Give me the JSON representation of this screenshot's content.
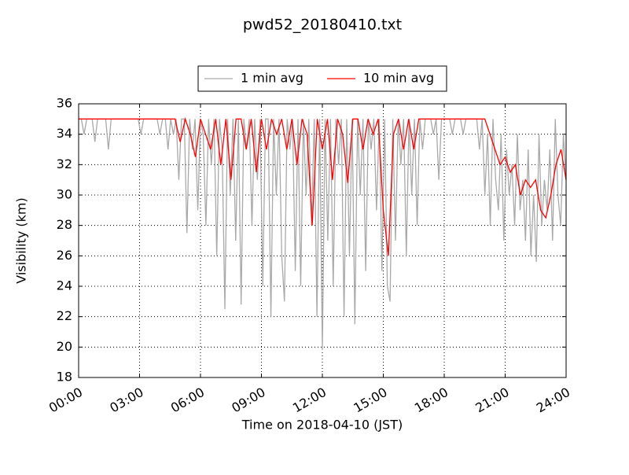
{
  "chart_data": {
    "type": "line",
    "title": "pwd52_20180410.txt",
    "x_label": "Time on 2018-04-10 (JST)",
    "y_label": "Visibility (km)",
    "xlim": [
      0,
      1440
    ],
    "ylim": [
      18,
      36
    ],
    "xticks": [
      {
        "value": 0,
        "label": "00:00"
      },
      {
        "value": 180,
        "label": "03:00"
      },
      {
        "value": 360,
        "label": "06:00"
      },
      {
        "value": 540,
        "label": "09:00"
      },
      {
        "value": 720,
        "label": "12:00"
      },
      {
        "value": 900,
        "label": "15:00"
      },
      {
        "value": 1080,
        "label": "18:00"
      },
      {
        "value": 1260,
        "label": "21:00"
      },
      {
        "value": 1440,
        "label": "24:00"
      }
    ],
    "yticks": [
      18,
      20,
      22,
      24,
      26,
      28,
      30,
      32,
      34,
      36
    ],
    "grid": true,
    "legend": "upper center",
    "series": [
      {
        "name": "1 min avg",
        "color": "#a9a9a9",
        "x": [
          0,
          8,
          16,
          24,
          32,
          40,
          48,
          56,
          64,
          72,
          80,
          88,
          96,
          104,
          112,
          120,
          128,
          136,
          144,
          152,
          160,
          168,
          176,
          184,
          192,
          200,
          208,
          216,
          224,
          232,
          240,
          248,
          256,
          264,
          272,
          280,
          288,
          296,
          304,
          312,
          320,
          328,
          336,
          344,
          352,
          360,
          368,
          376,
          384,
          392,
          400,
          408,
          416,
          424,
          432,
          440,
          448,
          456,
          464,
          472,
          480,
          488,
          496,
          504,
          512,
          520,
          528,
          536,
          544,
          552,
          560,
          568,
          576,
          584,
          592,
          600,
          608,
          616,
          624,
          632,
          640,
          648,
          656,
          664,
          672,
          680,
          688,
          696,
          704,
          712,
          720,
          728,
          736,
          744,
          752,
          760,
          768,
          776,
          784,
          792,
          800,
          808,
          816,
          824,
          832,
          840,
          848,
          856,
          864,
          872,
          880,
          888,
          896,
          904,
          912,
          920,
          928,
          936,
          944,
          952,
          960,
          968,
          976,
          984,
          992,
          1000,
          1008,
          1016,
          1024,
          1032,
          1040,
          1048,
          1056,
          1064,
          1072,
          1080,
          1088,
          1096,
          1104,
          1112,
          1120,
          1128,
          1136,
          1144,
          1152,
          1160,
          1168,
          1176,
          1184,
          1192,
          1200,
          1208,
          1216,
          1224,
          1232,
          1240,
          1248,
          1256,
          1264,
          1272,
          1280,
          1288,
          1296,
          1304,
          1312,
          1320,
          1328,
          1336,
          1344,
          1352,
          1360,
          1368,
          1376,
          1384,
          1392,
          1400,
          1408,
          1416,
          1424,
          1432,
          1440
        ],
        "values": [
          35,
          35,
          34,
          35,
          35,
          35,
          33.5,
          35,
          35,
          35,
          35,
          33,
          35,
          35,
          35,
          35,
          35,
          35,
          35,
          35,
          35,
          35,
          35,
          34,
          35,
          35,
          35,
          35,
          35,
          35,
          34,
          35,
          35,
          33,
          35,
          34,
          35,
          31,
          35,
          35,
          27.5,
          35,
          33,
          35,
          29,
          35,
          34,
          28,
          35,
          32,
          35,
          26,
          35,
          33,
          22.5,
          35,
          30,
          35,
          27,
          35,
          22.8,
          35,
          33,
          35,
          28,
          35,
          31,
          35,
          24,
          35,
          35,
          22,
          35,
          30,
          35,
          26,
          23,
          35,
          33,
          35,
          25,
          35,
          24,
          35,
          30,
          35,
          28,
          35,
          22,
          35,
          19.8,
          35,
          27,
          35,
          24,
          35,
          32,
          35,
          22,
          35,
          26,
          35,
          21.5,
          35,
          30,
          35,
          25,
          35,
          33,
          35,
          29,
          35,
          25,
          35,
          24,
          23,
          35,
          27,
          35,
          32,
          35,
          26,
          35,
          30,
          35,
          28,
          35,
          33,
          35,
          35,
          35,
          34,
          35,
          31,
          35,
          35,
          35,
          35,
          34,
          35,
          35,
          35,
          34,
          35,
          35,
          35,
          35,
          35,
          33,
          35,
          30,
          34,
          28,
          35,
          31,
          29,
          34,
          27,
          33,
          30,
          32,
          28,
          34,
          29,
          31,
          27,
          33,
          26,
          30,
          25.6,
          34,
          28,
          31,
          29,
          33,
          27,
          35,
          30,
          28,
          34,
          31
        ]
      },
      {
        "name": "10 min avg",
        "color": "#ff0000",
        "x": [
          0,
          15,
          30,
          45,
          60,
          75,
          90,
          105,
          120,
          135,
          150,
          165,
          180,
          195,
          210,
          225,
          240,
          255,
          270,
          285,
          300,
          315,
          330,
          345,
          360,
          375,
          390,
          405,
          420,
          435,
          450,
          465,
          480,
          495,
          510,
          525,
          540,
          555,
          570,
          585,
          600,
          615,
          630,
          645,
          660,
          675,
          690,
          705,
          720,
          735,
          750,
          765,
          780,
          795,
          810,
          825,
          840,
          855,
          870,
          885,
          900,
          915,
          930,
          945,
          960,
          975,
          990,
          1005,
          1020,
          1035,
          1050,
          1065,
          1080,
          1095,
          1110,
          1125,
          1140,
          1155,
          1170,
          1185,
          1200,
          1215,
          1230,
          1245,
          1260,
          1275,
          1290,
          1305,
          1320,
          1335,
          1350,
          1365,
          1380,
          1395,
          1410,
          1425,
          1440
        ],
        "values": [
          35,
          35,
          35,
          35,
          35,
          35,
          35,
          35,
          35,
          35,
          35,
          35,
          35,
          35,
          35,
          35,
          35,
          35,
          35,
          35,
          33.5,
          35,
          34,
          32.5,
          35,
          34,
          33,
          35,
          32,
          35,
          31,
          35,
          35,
          33,
          35,
          31.5,
          35,
          33,
          35,
          34,
          35,
          33,
          35,
          32,
          35,
          34,
          28,
          35,
          33,
          35,
          31,
          35,
          34,
          30.8,
          35,
          35,
          33,
          35,
          34,
          35,
          29,
          26,
          34,
          35,
          33,
          35,
          33,
          35,
          35,
          35,
          35,
          35,
          35,
          35,
          35,
          35,
          35,
          35,
          35,
          35,
          35,
          34,
          33,
          32,
          32.5,
          31.5,
          32,
          30,
          31,
          30.5,
          31,
          29,
          28.5,
          30,
          32,
          33,
          31
        ]
      }
    ]
  }
}
